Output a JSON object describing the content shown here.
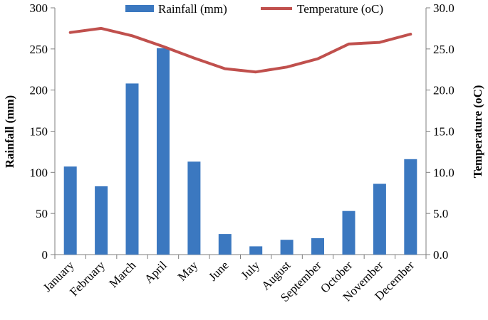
{
  "chart_data": {
    "type": "bar+line",
    "categories": [
      "January",
      "February",
      "March",
      "April",
      "May",
      "June",
      "July",
      "August",
      "September",
      "October",
      "November",
      "December"
    ],
    "series": [
      {
        "name": "Rainfall (mm)",
        "type": "bar",
        "axis": "left",
        "color": "#3b78c0",
        "values": [
          107,
          83,
          208,
          251,
          113,
          25,
          10,
          18,
          20,
          53,
          86,
          116
        ]
      },
      {
        "name": "Temperature (oC)",
        "type": "line",
        "axis": "right",
        "color": "#c0504d",
        "values": [
          27.0,
          27.5,
          26.6,
          25.3,
          23.9,
          22.6,
          22.2,
          22.8,
          23.8,
          25.6,
          25.8,
          26.8
        ]
      }
    ],
    "y_left": {
      "label": "Rainfall (mm)",
      "min": 0,
      "max": 300,
      "step": 50,
      "ticks": [
        "0",
        "50",
        "100",
        "150",
        "200",
        "250",
        "300"
      ]
    },
    "y_right": {
      "label": "Temperature (oC)",
      "min": 0,
      "max": 30,
      "step": 5,
      "ticks": [
        "0.0",
        "5.0",
        "10.0",
        "15.0",
        "20.0",
        "25.0",
        "30.0"
      ]
    },
    "legend": {
      "position": "top",
      "items": [
        {
          "label": "Rainfall (mm)",
          "color": "#3b78c0",
          "marker": "bar"
        },
        {
          "label": "Temperature (oC)",
          "color": "#c0504d",
          "marker": "line"
        }
      ]
    },
    "grid": false
  }
}
